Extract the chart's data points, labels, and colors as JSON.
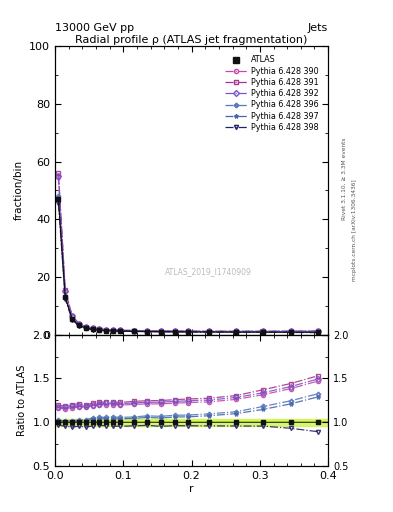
{
  "title": "Radial profile ρ (ATLAS jet fragmentation)",
  "header_left": "13000 GeV pp",
  "header_right": "Jets",
  "ylabel_main": "fraction/bin",
  "ylabel_ratio": "Ratio to ATLAS",
  "xlabel": "r",
  "watermark": "ATLAS_2019_I1740909",
  "rivet_text": "Rivet 3.1.10, ≥ 3.3M events",
  "mcplots_text": "mcplots.cern.ch [arXiv:1306.3436]",
  "ylim_main": [
    0,
    100
  ],
  "ylim_ratio": [
    0.5,
    2.0
  ],
  "xlim": [
    0.0,
    0.4
  ],
  "r_values": [
    0.005,
    0.015,
    0.025,
    0.035,
    0.045,
    0.055,
    0.065,
    0.075,
    0.085,
    0.095,
    0.115,
    0.135,
    0.155,
    0.175,
    0.195,
    0.225,
    0.265,
    0.305,
    0.345,
    0.385
  ],
  "atlas_data": [
    47.0,
    13.0,
    5.5,
    3.2,
    2.35,
    1.85,
    1.6,
    1.45,
    1.35,
    1.28,
    1.18,
    1.1,
    1.05,
    1.01,
    0.98,
    0.95,
    0.92,
    0.89,
    0.86,
    0.83
  ],
  "mc_labels": [
    "Pythia 6.428 390",
    "Pythia 6.428 391",
    "Pythia 6.428 392",
    "Pythia 6.428 396",
    "Pythia 6.428 397",
    "Pythia 6.428 398"
  ],
  "mc_colors": [
    "#cc44aa",
    "#aa3388",
    "#7755cc",
    "#5577bb",
    "#4466aa",
    "#222266"
  ],
  "mc_markers": [
    "o",
    "s",
    "D",
    "P",
    "*",
    "v"
  ],
  "mc_data": [
    [
      54.5,
      15.0,
      6.4,
      3.75,
      2.75,
      2.2,
      1.92,
      1.74,
      1.62,
      1.53,
      1.42,
      1.33,
      1.27,
      1.23,
      1.2,
      1.17,
      1.16,
      1.17,
      1.19,
      1.22
    ],
    [
      56.0,
      15.4,
      6.6,
      3.88,
      2.82,
      2.25,
      1.97,
      1.78,
      1.66,
      1.57,
      1.46,
      1.37,
      1.31,
      1.27,
      1.24,
      1.21,
      1.2,
      1.22,
      1.24,
      1.27
    ],
    [
      55.0,
      15.2,
      6.5,
      3.8,
      2.78,
      2.22,
      1.94,
      1.76,
      1.64,
      1.55,
      1.44,
      1.35,
      1.29,
      1.25,
      1.22,
      1.19,
      1.18,
      1.19,
      1.21,
      1.24
    ],
    [
      48.0,
      13.2,
      5.6,
      3.28,
      2.42,
      1.94,
      1.69,
      1.53,
      1.43,
      1.35,
      1.25,
      1.18,
      1.12,
      1.09,
      1.06,
      1.04,
      1.03,
      1.05,
      1.07,
      1.1
    ],
    [
      47.5,
      13.0,
      5.5,
      3.24,
      2.38,
      1.91,
      1.66,
      1.51,
      1.4,
      1.33,
      1.23,
      1.16,
      1.1,
      1.07,
      1.04,
      1.02,
      1.01,
      1.02,
      1.04,
      1.07
    ],
    [
      45.5,
      12.4,
      5.2,
      3.05,
      2.22,
      1.77,
      1.54,
      1.39,
      1.29,
      1.22,
      1.13,
      1.06,
      1.0,
      0.97,
      0.94,
      0.91,
      0.88,
      0.85,
      0.8,
      0.74
    ]
  ],
  "atlas_color": "#111111",
  "green_band_ylow": 0.96,
  "green_band_yhigh": 1.04,
  "green_line_color": "#88cc00",
  "green_band_color": "#ccee44",
  "green_band_alpha": 0.7,
  "ratio_yticks": [
    0.5,
    1.0,
    1.5,
    2.0
  ],
  "main_yticks": [
    0,
    20,
    40,
    60,
    80,
    100
  ],
  "xticks": [
    0.0,
    0.1,
    0.2,
    0.3,
    0.4
  ]
}
